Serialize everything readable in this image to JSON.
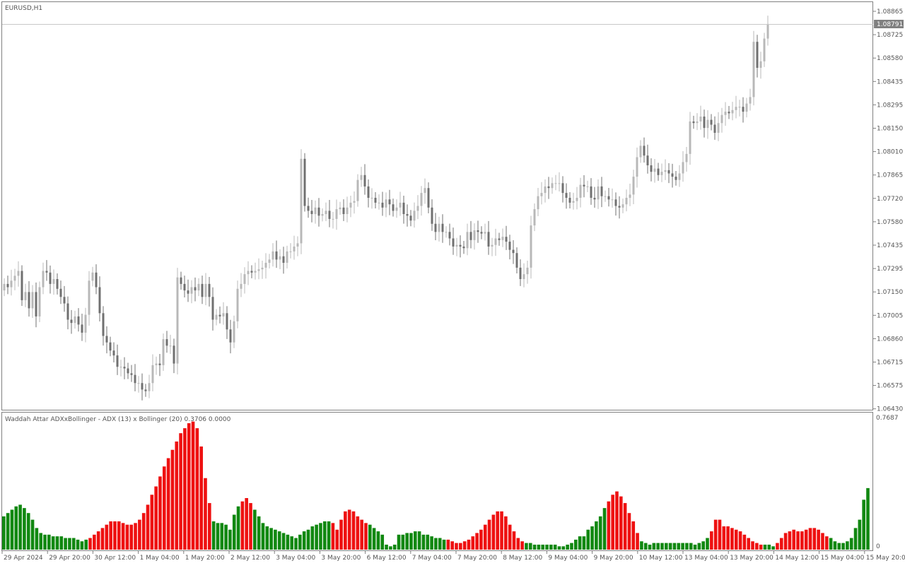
{
  "main_chart": {
    "symbol_label": "EURUSD,H1",
    "current_price": "1.08791",
    "price_axis_labels": [
      "1.08865",
      "1.08725",
      "1.08580",
      "1.08435",
      "1.08295",
      "1.08150",
      "1.08010",
      "1.07865",
      "1.07720",
      "1.07580",
      "1.07435",
      "1.07295",
      "1.07150",
      "1.07005",
      "1.06860",
      "1.06715",
      "1.06575",
      "1.06430"
    ],
    "colors": {
      "candle_dark": "#707070",
      "candle_light": "#b8b8b8",
      "price_line": "#c8c8c8",
      "price_tag_bg": "#808080"
    }
  },
  "indicator": {
    "label": "Waddah Attar ADXxBollinger - ADX (13) x Bollinger (20) 0.3706 0.0000",
    "axis_top": "0.7687",
    "axis_zero": "0",
    "colors": {
      "up": "#118811",
      "down": "#ee1111"
    }
  },
  "time_axis_labels": [
    "29 Apr 2024",
    "29 Apr 20:00",
    "30 Apr 12:00",
    "1 May 04:00",
    "1 May 20:00",
    "2 May 12:00",
    "3 May 04:00",
    "3 May 20:00",
    "6 May 12:00",
    "7 May 04:00",
    "7 May 20:00",
    "8 May 12:00",
    "9 May 04:00",
    "9 May 20:00",
    "10 May 12:00",
    "13 May 04:00",
    "13 May 20:00",
    "14 May 12:00",
    "15 May 04:00",
    "15 May 20:00"
  ],
  "chart_data": [
    {
      "type": "candlestick",
      "title": "EURUSD,H1",
      "ylim": [
        1.0643,
        1.0893
      ],
      "close": [
        1.072,
        1.0718,
        1.0722,
        1.0725,
        1.0728,
        1.071,
        1.0715,
        1.0705,
        1.0715,
        1.07,
        1.0718,
        1.0728,
        1.0727,
        1.072,
        1.0723,
        1.0717,
        1.0712,
        1.0708,
        1.0698,
        1.0696,
        1.07,
        1.0695,
        1.069,
        1.0701,
        1.0722,
        1.0727,
        1.0718,
        1.0702,
        1.0688,
        1.0684,
        1.0679,
        1.0676,
        1.0669,
        1.0669,
        1.0668,
        1.0665,
        1.0664,
        1.0659,
        1.0659,
        1.0655,
        1.0654,
        1.0659,
        1.067,
        1.0671,
        1.067,
        1.0686,
        1.0682,
        1.0682,
        1.0671,
        1.0724,
        1.072,
        1.0716,
        1.0714,
        1.0718,
        1.0716,
        1.072,
        1.0712,
        1.072,
        1.0712,
        1.0698,
        1.0701,
        1.07,
        1.0702,
        1.0692,
        1.0684,
        1.0697,
        1.0717,
        1.072,
        1.0726,
        1.0728,
        1.0727,
        1.0728,
        1.0729,
        1.073,
        1.0733,
        1.0735,
        1.074,
        1.0735,
        1.0737,
        1.0733,
        1.074,
        1.074,
        1.0743,
        1.0745,
        1.0797,
        1.0768,
        1.0765,
        1.0763,
        1.0767,
        1.0762,
        1.0763,
        1.0765,
        1.076,
        1.076,
        1.0766,
        1.0767,
        1.0763,
        1.0767,
        1.077,
        1.0771,
        1.0784,
        1.0787,
        1.078,
        1.0773,
        1.0773,
        1.077,
        1.077,
        1.0767,
        1.0772,
        1.0769,
        1.0765,
        1.0767,
        1.077,
        1.0763,
        1.0762,
        1.0759,
        1.0765,
        1.0768,
        1.0776,
        1.0779,
        1.0767,
        1.0757,
        1.0752,
        1.0757,
        1.0752,
        1.0752,
        1.0748,
        1.0743,
        1.0744,
        1.0743,
        1.0742,
        1.0752,
        1.0747,
        1.0753,
        1.0752,
        1.0751,
        1.0752,
        1.0743,
        1.0744,
        1.0748,
        1.0747,
        1.0749,
        1.0746,
        1.0741,
        1.0739,
        1.073,
        1.0723,
        1.0726,
        1.073,
        1.0756,
        1.0766,
        1.0774,
        1.0776,
        1.078,
        1.0779,
        1.0782,
        1.0782,
        1.0782,
        1.0776,
        1.0773,
        1.077,
        1.0771,
        1.0773,
        1.0781,
        1.078,
        1.078,
        1.0773,
        1.0772,
        1.078,
        1.0774,
        1.0774,
        1.0772,
        1.0772,
        1.0768,
        1.0767,
        1.0769,
        1.0773,
        1.0775,
        1.0786,
        1.0798,
        1.0805,
        1.0799,
        1.0793,
        1.0789,
        1.0791,
        1.0787,
        1.0789,
        1.079,
        1.0788,
        1.0786,
        1.0784,
        1.0788,
        1.0795,
        1.08,
        1.082,
        1.0819,
        1.082,
        1.0823,
        1.0816,
        1.0821,
        1.0818,
        1.0813,
        1.0819,
        1.0824,
        1.0826,
        1.0825,
        1.0827,
        1.0829,
        1.0829,
        1.0826,
        1.0831,
        1.0835,
        1.0869,
        1.0853,
        1.0857,
        1.0871,
        1.088
      ],
      "open": [
        1.0716,
        1.072,
        1.0718,
        1.0722,
        1.0725,
        1.0728,
        1.071,
        1.0715,
        1.0705,
        1.0715,
        1.07,
        1.0718,
        1.0728,
        1.0727,
        1.072,
        1.0723,
        1.0717,
        1.0712,
        1.0708,
        1.0698,
        1.0696,
        1.07,
        1.0695,
        1.069,
        1.0701,
        1.0722,
        1.0727,
        1.0718,
        1.0702,
        1.0688,
        1.0684,
        1.0679,
        1.0676,
        1.0669,
        1.0669,
        1.0668,
        1.0665,
        1.0664,
        1.0659,
        1.0659,
        1.0655,
        1.0654,
        1.0659,
        1.067,
        1.0671,
        1.067,
        1.0686,
        1.0682,
        1.0682,
        1.0671,
        1.0724,
        1.072,
        1.0716,
        1.0714,
        1.0718,
        1.0716,
        1.072,
        1.0712,
        1.072,
        1.0712,
        1.0698,
        1.0701,
        1.07,
        1.0702,
        1.0692,
        1.0684,
        1.0697,
        1.0717,
        1.072,
        1.0726,
        1.0728,
        1.0727,
        1.0728,
        1.0729,
        1.073,
        1.0733,
        1.0735,
        1.074,
        1.0735,
        1.0737,
        1.0733,
        1.074,
        1.074,
        1.0743,
        1.0745,
        1.0797,
        1.0768,
        1.0765,
        1.0763,
        1.0767,
        1.0762,
        1.0763,
        1.0765,
        1.076,
        1.076,
        1.0766,
        1.0767,
        1.0763,
        1.0767,
        1.077,
        1.0771,
        1.0784,
        1.0787,
        1.078,
        1.0773,
        1.0773,
        1.077,
        1.077,
        1.0767,
        1.0772,
        1.0769,
        1.0765,
        1.0767,
        1.077,
        1.0763,
        1.0762,
        1.0759,
        1.0765,
        1.0768,
        1.0776,
        1.0779,
        1.0767,
        1.0757,
        1.0752,
        1.0757,
        1.0752,
        1.0752,
        1.0748,
        1.0743,
        1.0744,
        1.0743,
        1.0742,
        1.0752,
        1.0747,
        1.0753,
        1.0752,
        1.0751,
        1.0752,
        1.0743,
        1.0744,
        1.0748,
        1.0747,
        1.0749,
        1.0746,
        1.0741,
        1.0739,
        1.073,
        1.0723,
        1.0726,
        1.073,
        1.0756,
        1.0766,
        1.0774,
        1.0776,
        1.078,
        1.0779,
        1.0782,
        1.0782,
        1.0782,
        1.0776,
        1.0773,
        1.077,
        1.0771,
        1.0773,
        1.0781,
        1.078,
        1.078,
        1.0773,
        1.0772,
        1.078,
        1.0774,
        1.0774,
        1.0772,
        1.0772,
        1.0768,
        1.0767,
        1.0769,
        1.0773,
        1.0775,
        1.0786,
        1.0798,
        1.0805,
        1.0799,
        1.0793,
        1.0789,
        1.0791,
        1.0787,
        1.0789,
        1.079,
        1.0788,
        1.0786,
        1.0784,
        1.0788,
        1.0795,
        1.08,
        1.082,
        1.0819,
        1.082,
        1.0823,
        1.0816,
        1.0821,
        1.0818,
        1.0813,
        1.0819,
        1.0824,
        1.0826,
        1.0825,
        1.0827,
        1.0829,
        1.0829,
        1.0826,
        1.0831,
        1.0835,
        1.0869,
        1.0853,
        1.0857,
        1.0871
      ]
    },
    {
      "type": "bar",
      "title": "Waddah Attar ADXxBollinger - ADX (13) x Bollinger (20) 0.3706 0.0000",
      "ylim": [
        0,
        0.7687
      ],
      "values": [
        0.2,
        0.22,
        0.24,
        0.26,
        0.27,
        0.25,
        0.22,
        0.18,
        0.13,
        0.1,
        0.09,
        0.09,
        0.08,
        0.08,
        0.08,
        0.07,
        0.07,
        0.07,
        0.06,
        0.05,
        0.06,
        0.07,
        0.09,
        0.11,
        0.13,
        0.15,
        0.17,
        0.17,
        0.17,
        0.16,
        0.15,
        0.15,
        0.16,
        0.18,
        0.22,
        0.27,
        0.33,
        0.38,
        0.44,
        0.5,
        0.55,
        0.6,
        0.65,
        0.7,
        0.73,
        0.76,
        0.77,
        0.73,
        0.62,
        0.43,
        0.28,
        0.17,
        0.16,
        0.16,
        0.15,
        0.12,
        0.21,
        0.26,
        0.29,
        0.31,
        0.28,
        0.24,
        0.2,
        0.16,
        0.14,
        0.13,
        0.12,
        0.11,
        0.1,
        0.09,
        0.08,
        0.07,
        0.09,
        0.11,
        0.12,
        0.14,
        0.15,
        0.16,
        0.17,
        0.17,
        0.16,
        0.12,
        0.18,
        0.23,
        0.24,
        0.23,
        0.2,
        0.18,
        0.16,
        0.15,
        0.13,
        0.11,
        0.09,
        0.03,
        0.02,
        0.03,
        0.09,
        0.09,
        0.1,
        0.1,
        0.11,
        0.11,
        0.09,
        0.09,
        0.08,
        0.07,
        0.07,
        0.06,
        0.06,
        0.05,
        0.04,
        0.04,
        0.05,
        0.06,
        0.08,
        0.1,
        0.12,
        0.15,
        0.18,
        0.21,
        0.23,
        0.23,
        0.2,
        0.15,
        0.11,
        0.07,
        0.05,
        0.04,
        0.04,
        0.03,
        0.03,
        0.03,
        0.03,
        0.03,
        0.03,
        0.02,
        0.02,
        0.03,
        0.04,
        0.06,
        0.08,
        0.08,
        0.12,
        0.14,
        0.17,
        0.2,
        0.25,
        0.29,
        0.33,
        0.35,
        0.32,
        0.28,
        0.22,
        0.17,
        0.1,
        0.05,
        0.04,
        0.03,
        0.04,
        0.04,
        0.04,
        0.04,
        0.04,
        0.04,
        0.04,
        0.04,
        0.04,
        0.04,
        0.03,
        0.04,
        0.05,
        0.07,
        0.11,
        0.18,
        0.18,
        0.14,
        0.14,
        0.13,
        0.12,
        0.11,
        0.09,
        0.07,
        0.05,
        0.04,
        0.03,
        0.03,
        0.03,
        0.02,
        0.04,
        0.07,
        0.1,
        0.11,
        0.12,
        0.11,
        0.11,
        0.12,
        0.13,
        0.13,
        0.12,
        0.1,
        0.08,
        0.07,
        0.05,
        0.04,
        0.04,
        0.05,
        0.07,
        0.13,
        0.18,
        0.3,
        0.37
      ],
      "series": [
        {
          "name": "up"
        },
        {
          "name": "down"
        }
      ]
    }
  ]
}
